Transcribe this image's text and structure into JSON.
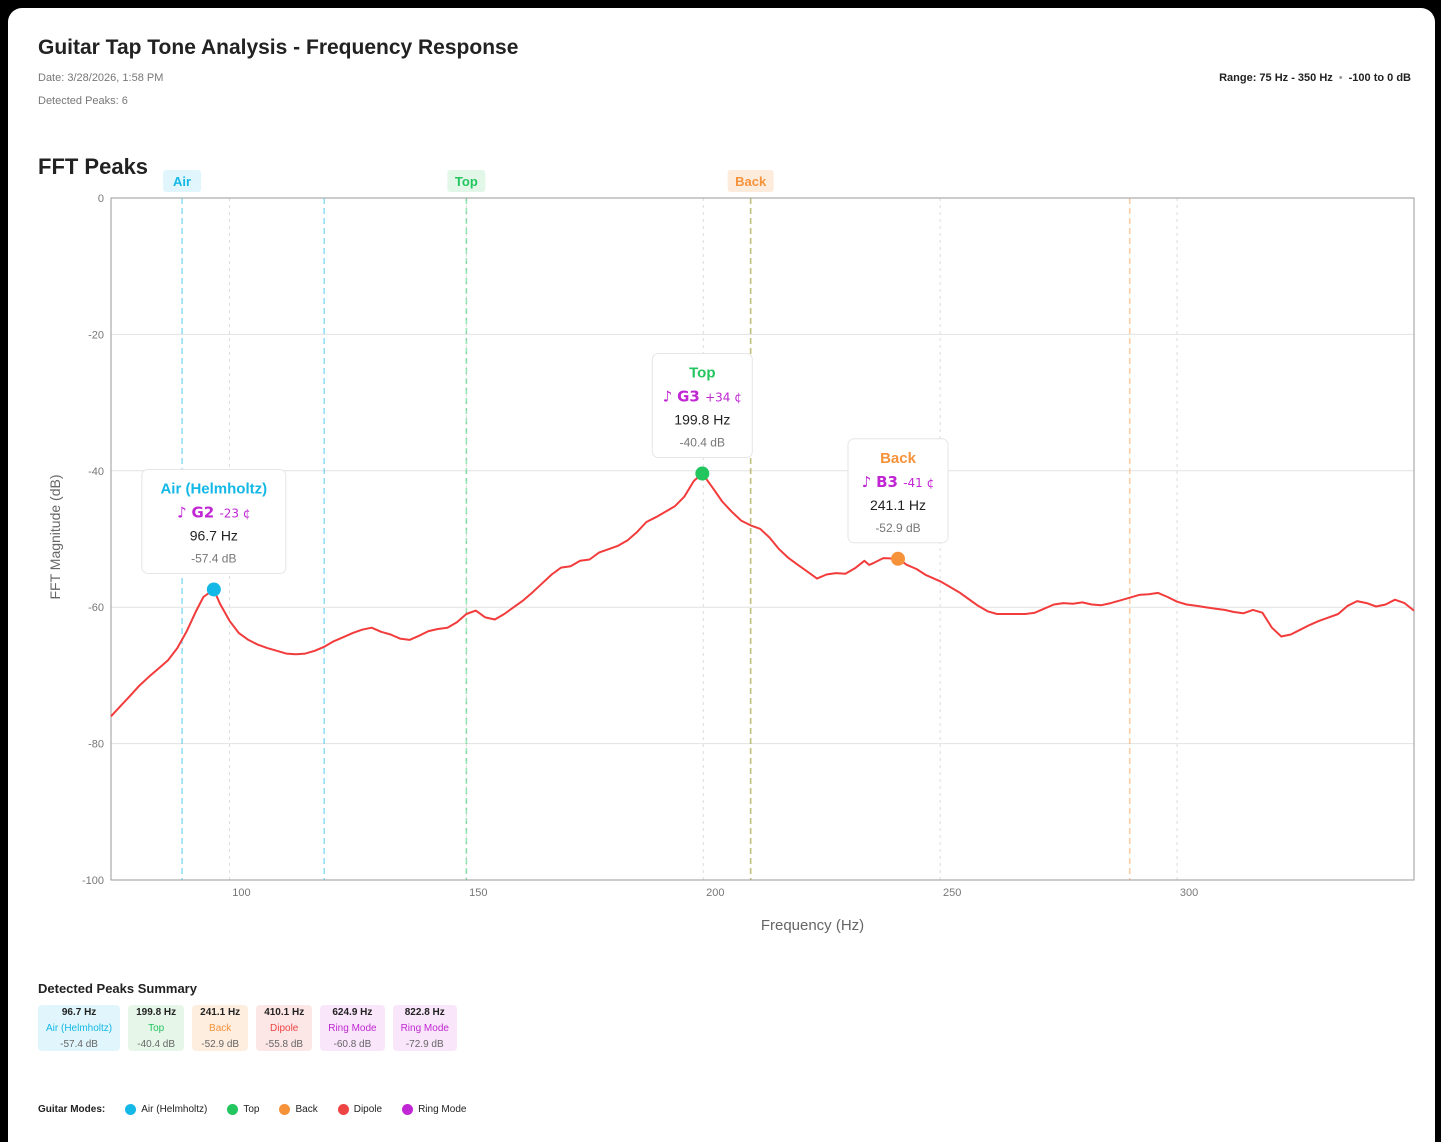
{
  "header": {
    "title": "Guitar Tap Tone Analysis - Frequency Response",
    "date": "Date: 3/28/2026, 1:58 PM",
    "detected": "Detected Peaks: 6",
    "range_hz": "Range: 75 Hz - 350 Hz",
    "range_db": "-100 to 0 dB"
  },
  "section_title": "FFT Peaks",
  "chart_data": {
    "type": "line",
    "xlabel": "Frequency (Hz)",
    "ylabel": "FFT Magnitude (dB)",
    "xlim": [
      75,
      350
    ],
    "ylim": [
      -100,
      0
    ],
    "xticks": [
      100,
      150,
      200,
      250,
      300
    ],
    "yticks": [
      0,
      -20,
      -40,
      -60,
      -80,
      -100
    ],
    "grid": true,
    "line_color": "#f23c3c",
    "curve": [
      [
        75,
        -76.0
      ],
      [
        77,
        -74.5
      ],
      [
        79,
        -73.0
      ],
      [
        81,
        -71.5
      ],
      [
        83,
        -70.2
      ],
      [
        85,
        -69.0
      ],
      [
        87,
        -67.8
      ],
      [
        89,
        -66.0
      ],
      [
        91,
        -63.5
      ],
      [
        93,
        -60.5
      ],
      [
        94.5,
        -58.5
      ],
      [
        96.7,
        -57.4
      ],
      [
        98,
        -59.5
      ],
      [
        100,
        -62.0
      ],
      [
        102,
        -63.8
      ],
      [
        104,
        -64.8
      ],
      [
        106,
        -65.5
      ],
      [
        108,
        -66.0
      ],
      [
        110,
        -66.4
      ],
      [
        112,
        -66.8
      ],
      [
        114,
        -66.9
      ],
      [
        116,
        -66.8
      ],
      [
        118,
        -66.4
      ],
      [
        120,
        -65.8
      ],
      [
        122,
        -65.0
      ],
      [
        124,
        -64.4
      ],
      [
        126,
        -63.8
      ],
      [
        128,
        -63.3
      ],
      [
        130,
        -63.0
      ],
      [
        132,
        -63.6
      ],
      [
        134,
        -64.0
      ],
      [
        136,
        -64.6
      ],
      [
        138,
        -64.8
      ],
      [
        140,
        -64.2
      ],
      [
        142,
        -63.5
      ],
      [
        144,
        -63.2
      ],
      [
        146,
        -63.0
      ],
      [
        148,
        -62.2
      ],
      [
        150,
        -61.0
      ],
      [
        152,
        -60.5
      ],
      [
        154,
        -61.5
      ],
      [
        156,
        -61.8
      ],
      [
        158,
        -61.0
      ],
      [
        160,
        -60.0
      ],
      [
        162,
        -59.0
      ],
      [
        164,
        -57.8
      ],
      [
        166,
        -56.5
      ],
      [
        168,
        -55.2
      ],
      [
        170,
        -54.2
      ],
      [
        172,
        -54.0
      ],
      [
        174,
        -53.2
      ],
      [
        176,
        -53.0
      ],
      [
        178,
        -52.0
      ],
      [
        180,
        -51.5
      ],
      [
        182,
        -51.0
      ],
      [
        184,
        -50.2
      ],
      [
        186,
        -49.0
      ],
      [
        188,
        -47.5
      ],
      [
        190,
        -46.8
      ],
      [
        192,
        -46.0
      ],
      [
        194,
        -45.2
      ],
      [
        196,
        -43.8
      ],
      [
        198,
        -41.5
      ],
      [
        199.8,
        -40.4
      ],
      [
        202,
        -42.5
      ],
      [
        204,
        -44.5
      ],
      [
        206,
        -46.0
      ],
      [
        208,
        -47.3
      ],
      [
        210,
        -48.0
      ],
      [
        212,
        -48.5
      ],
      [
        214,
        -49.8
      ],
      [
        216,
        -51.5
      ],
      [
        218,
        -52.8
      ],
      [
        220,
        -53.8
      ],
      [
        222,
        -54.8
      ],
      [
        224,
        -55.8
      ],
      [
        226,
        -55.2
      ],
      [
        228,
        -55.0
      ],
      [
        230,
        -55.1
      ],
      [
        232,
        -54.3
      ],
      [
        234,
        -53.2
      ],
      [
        235,
        -53.8
      ],
      [
        236,
        -53.5
      ],
      [
        238,
        -52.8
      ],
      [
        241.1,
        -52.9
      ],
      [
        243,
        -53.8
      ],
      [
        245,
        -54.4
      ],
      [
        247,
        -55.3
      ],
      [
        250,
        -56.2
      ],
      [
        252,
        -57.0
      ],
      [
        254,
        -57.8
      ],
      [
        256,
        -58.8
      ],
      [
        258,
        -59.8
      ],
      [
        260,
        -60.6
      ],
      [
        262,
        -61.0
      ],
      [
        265,
        -61.0
      ],
      [
        268,
        -61.0
      ],
      [
        270,
        -60.8
      ],
      [
        272,
        -60.2
      ],
      [
        274,
        -59.6
      ],
      [
        276,
        -59.4
      ],
      [
        278,
        -59.5
      ],
      [
        280,
        -59.3
      ],
      [
        282,
        -59.6
      ],
      [
        284,
        -59.7
      ],
      [
        286,
        -59.4
      ],
      [
        288,
        -59.0
      ],
      [
        290,
        -58.6
      ],
      [
        292,
        -58.2
      ],
      [
        294,
        -58.1
      ],
      [
        296,
        -57.9
      ],
      [
        298,
        -58.5
      ],
      [
        300,
        -59.2
      ],
      [
        302,
        -59.6
      ],
      [
        304,
        -59.8
      ],
      [
        306,
        -60.0
      ],
      [
        308,
        -60.2
      ],
      [
        310,
        -60.4
      ],
      [
        312,
        -60.7
      ],
      [
        314,
        -60.9
      ],
      [
        316,
        -60.4
      ],
      [
        318,
        -60.8
      ],
      [
        320,
        -63.0
      ],
      [
        322,
        -64.3
      ],
      [
        324,
        -64.0
      ],
      [
        326,
        -63.3
      ],
      [
        328,
        -62.6
      ],
      [
        330,
        -62.0
      ],
      [
        332,
        -61.5
      ],
      [
        334,
        -61.0
      ],
      [
        336,
        -59.8
      ],
      [
        338,
        -59.1
      ],
      [
        340,
        -59.4
      ],
      [
        342,
        -59.9
      ],
      [
        344,
        -59.6
      ],
      [
        346,
        -58.9
      ],
      [
        348,
        -59.4
      ],
      [
        350,
        -60.5
      ]
    ],
    "mode_bands": [
      {
        "label": "Air",
        "color": "#14b8e6",
        "bg": "#e0f6fc",
        "x1": 90,
        "x2": 120
      },
      {
        "label": "Top",
        "color": "#22c55e",
        "bg": "#e3f7e9",
        "x1": 150,
        "x2": 210
      },
      {
        "label": "Back",
        "color": "#f5923a",
        "bg": "#fdebdc",
        "x1": 210,
        "x2": 290
      }
    ],
    "peaks": [
      {
        "name": "Air (Helmholtz)",
        "note": "G2",
        "cents": "-23 ¢",
        "hz": "96.7 Hz",
        "db": "-57.4 dB",
        "x": 96.7,
        "y": -57.4,
        "color": "#14b8e6"
      },
      {
        "name": "Top",
        "note": "G3",
        "cents": "+34 ¢",
        "hz": "199.8 Hz",
        "db": "-40.4 dB",
        "x": 199.8,
        "y": -40.4,
        "color": "#22c55e"
      },
      {
        "name": "Back",
        "note": "B3",
        "cents": "-41 ¢",
        "hz": "241.1 Hz",
        "db": "-52.9 dB",
        "x": 241.1,
        "y": -52.9,
        "color": "#f5923a"
      }
    ],
    "note_color": "#c026d3",
    "note_glyph": "♪"
  },
  "summary": {
    "title": "Detected Peaks Summary",
    "cards": [
      {
        "hz": "96.7 Hz",
        "mode": "Air (Helmholtz)",
        "db": "-57.4 dB",
        "color": "#14b8e6",
        "bg": "#e0f6fc"
      },
      {
        "hz": "199.8 Hz",
        "mode": "Top",
        "db": "-40.4 dB",
        "color": "#22c55e",
        "bg": "#e6f7ea"
      },
      {
        "hz": "241.1 Hz",
        "mode": "Back",
        "db": "-52.9 dB",
        "color": "#f5923a",
        "bg": "#fdeee0"
      },
      {
        "hz": "410.1 Hz",
        "mode": "Dipole",
        "db": "-55.8 dB",
        "color": "#ef4444",
        "bg": "#fde6e6"
      },
      {
        "hz": "624.9 Hz",
        "mode": "Ring Mode",
        "db": "-60.8 dB",
        "color": "#c026d3",
        "bg": "#fae6fb"
      },
      {
        "hz": "822.8 Hz",
        "mode": "Ring Mode",
        "db": "-72.9 dB",
        "color": "#c026d3",
        "bg": "#fae6fb"
      }
    ]
  },
  "legend": {
    "label": "Guitar Modes:",
    "items": [
      {
        "name": "Air (Helmholtz)",
        "color": "#14b8e6"
      },
      {
        "name": "Top",
        "color": "#22c55e"
      },
      {
        "name": "Back",
        "color": "#f5923a"
      },
      {
        "name": "Dipole",
        "color": "#ef4444"
      },
      {
        "name": "Ring Mode",
        "color": "#c026d3"
      }
    ]
  }
}
